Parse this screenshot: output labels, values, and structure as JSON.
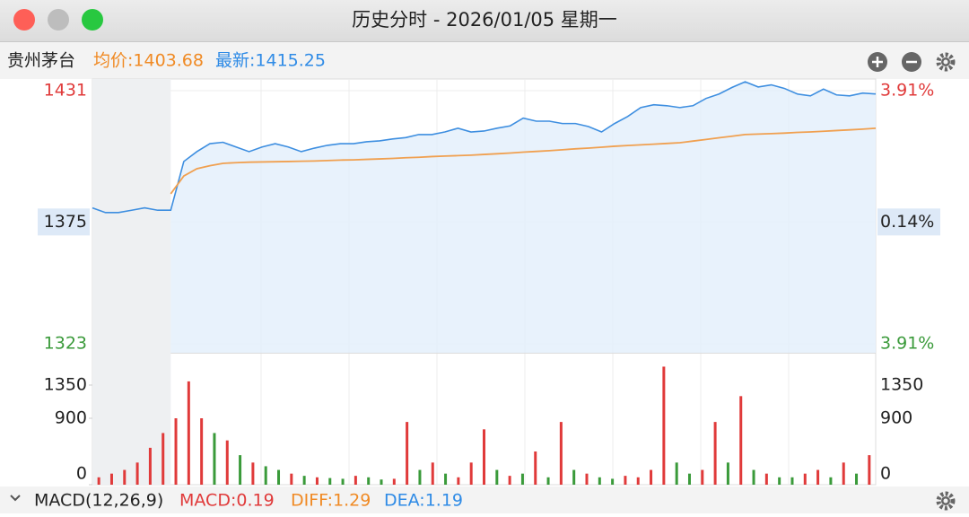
{
  "window": {
    "title": "历史分时 - 2026/01/05 星期一"
  },
  "header": {
    "name": "贵州茅台",
    "avg": "均价:1403.68",
    "latest": "最新:1415.25"
  },
  "footer": {
    "indicator": "MACD(12,26,9)",
    "macd": "MACD:0.19",
    "diff": "DIFF:1.29",
    "dea": "DEA:1.19"
  },
  "chart_data": [
    {
      "type": "line",
      "series": [
        {
          "color": "#3d8ee0",
          "values": [
            1381,
            1379,
            1379,
            1380,
            1381,
            1380,
            1380,
            1400.8,
            1405,
            1408.4,
            1409,
            1407,
            1405,
            1407,
            1408.4,
            1407,
            1405,
            1406.5,
            1407.7,
            1408.4,
            1408.4,
            1409.2,
            1409.6,
            1410.4,
            1411,
            1412.3,
            1412.3,
            1413.4,
            1415,
            1413.4,
            1413.8,
            1415,
            1416,
            1419.3,
            1418,
            1418,
            1417,
            1417,
            1415.7,
            1413.4,
            1417,
            1420,
            1423.8,
            1425,
            1424.6,
            1423.8,
            1424.6,
            1427.7,
            1429.6,
            1432.4,
            1434.8,
            1432.6,
            1433.5,
            1432,
            1429.6,
            1428.8,
            1431.7,
            1429.2,
            1428.8,
            1430,
            1429.6
          ]
        },
        {
          "color": "#f0a050",
          "values": [
            null,
            null,
            null,
            null,
            null,
            null,
            1387,
            1394.6,
            1397.7,
            1399,
            1400,
            1400.3,
            1400.5,
            1400.6,
            1400.7,
            1400.8,
            1400.9,
            1401,
            1401.2,
            1401.4,
            1401.5,
            1401.7,
            1401.9,
            1402.1,
            1402.4,
            1402.6,
            1402.9,
            1403.1,
            1403.3,
            1403.5,
            1403.8,
            1404.1,
            1404.4,
            1404.8,
            1405.1,
            1405.4,
            1405.8,
            1406.2,
            1406.5,
            1406.9,
            1407.3,
            1407.6,
            1407.9,
            1408.2,
            1408.5,
            1408.8,
            1409.5,
            1410.2,
            1410.9,
            1411.6,
            1412.3,
            1412.5,
            1412.7,
            1412.9,
            1413.2,
            1413.4,
            1413.7,
            1414,
            1414.3,
            1414.6,
            1415
          ]
        }
      ],
      "ylim": [
        1319.2,
        1436
      ],
      "yticks": [
        1431,
        1375,
        1323
      ],
      "ytick_colors": [
        "#e03a3a",
        "#222222",
        "#3a9a3a"
      ],
      "right_labels": [
        "3.91%",
        "0.14%",
        "3.91%"
      ],
      "highlight_tick": 1,
      "premarket_points": 6
    },
    {
      "type": "bar",
      "values": [
        100,
        150,
        200,
        300,
        500,
        700,
        900,
        1400,
        900,
        700,
        600,
        400,
        300,
        250,
        200,
        150,
        120,
        100,
        90,
        80,
        120,
        100,
        70,
        80,
        850,
        200,
        300,
        150,
        100,
        300,
        750,
        200,
        120,
        150,
        450,
        100,
        850,
        200,
        150,
        100,
        80,
        120,
        100,
        200,
        1600,
        300,
        150,
        200,
        850,
        300,
        1200,
        200,
        150,
        100,
        100,
        150,
        200,
        100,
        300,
        150,
        400
      ],
      "colors": [
        "#e03a3a",
        "#e03a3a",
        "#e03a3a",
        "#e03a3a",
        "#e03a3a",
        "#e03a3a",
        "#e03a3a",
        "#e03a3a",
        "#e03a3a",
        "#3a9a3a",
        "#e03a3a",
        "#3a9a3a",
        "#e03a3a",
        "#3a9a3a",
        "#3a9a3a",
        "#e03a3a",
        "#3a9a3a",
        "#e03a3a",
        "#3a9a3a",
        "#3a9a3a",
        "#e03a3a",
        "#3a9a3a",
        "#3a9a3a",
        "#e03a3a",
        "#e03a3a",
        "#3a9a3a",
        "#e03a3a",
        "#3a9a3a",
        "#e03a3a",
        "#e03a3a",
        "#e03a3a",
        "#3a9a3a",
        "#e03a3a",
        "#3a9a3a",
        "#e03a3a",
        "#3a9a3a",
        "#e03a3a",
        "#3a9a3a",
        "#e03a3a",
        "#3a9a3a",
        "#3a9a3a",
        "#e03a3a",
        "#e03a3a",
        "#e03a3a",
        "#e03a3a",
        "#3a9a3a",
        "#3a9a3a",
        "#e03a3a",
        "#e03a3a",
        "#3a9a3a",
        "#e03a3a",
        "#3a9a3a",
        "#e03a3a",
        "#3a9a3a",
        "#3a9a3a",
        "#e03a3a",
        "#e03a3a",
        "#3a9a3a",
        "#e03a3a",
        "#3a9a3a",
        "#e03a3a"
      ],
      "ylim": [
        0,
        1788
      ],
      "yticks": [
        0,
        900,
        1350
      ]
    }
  ]
}
